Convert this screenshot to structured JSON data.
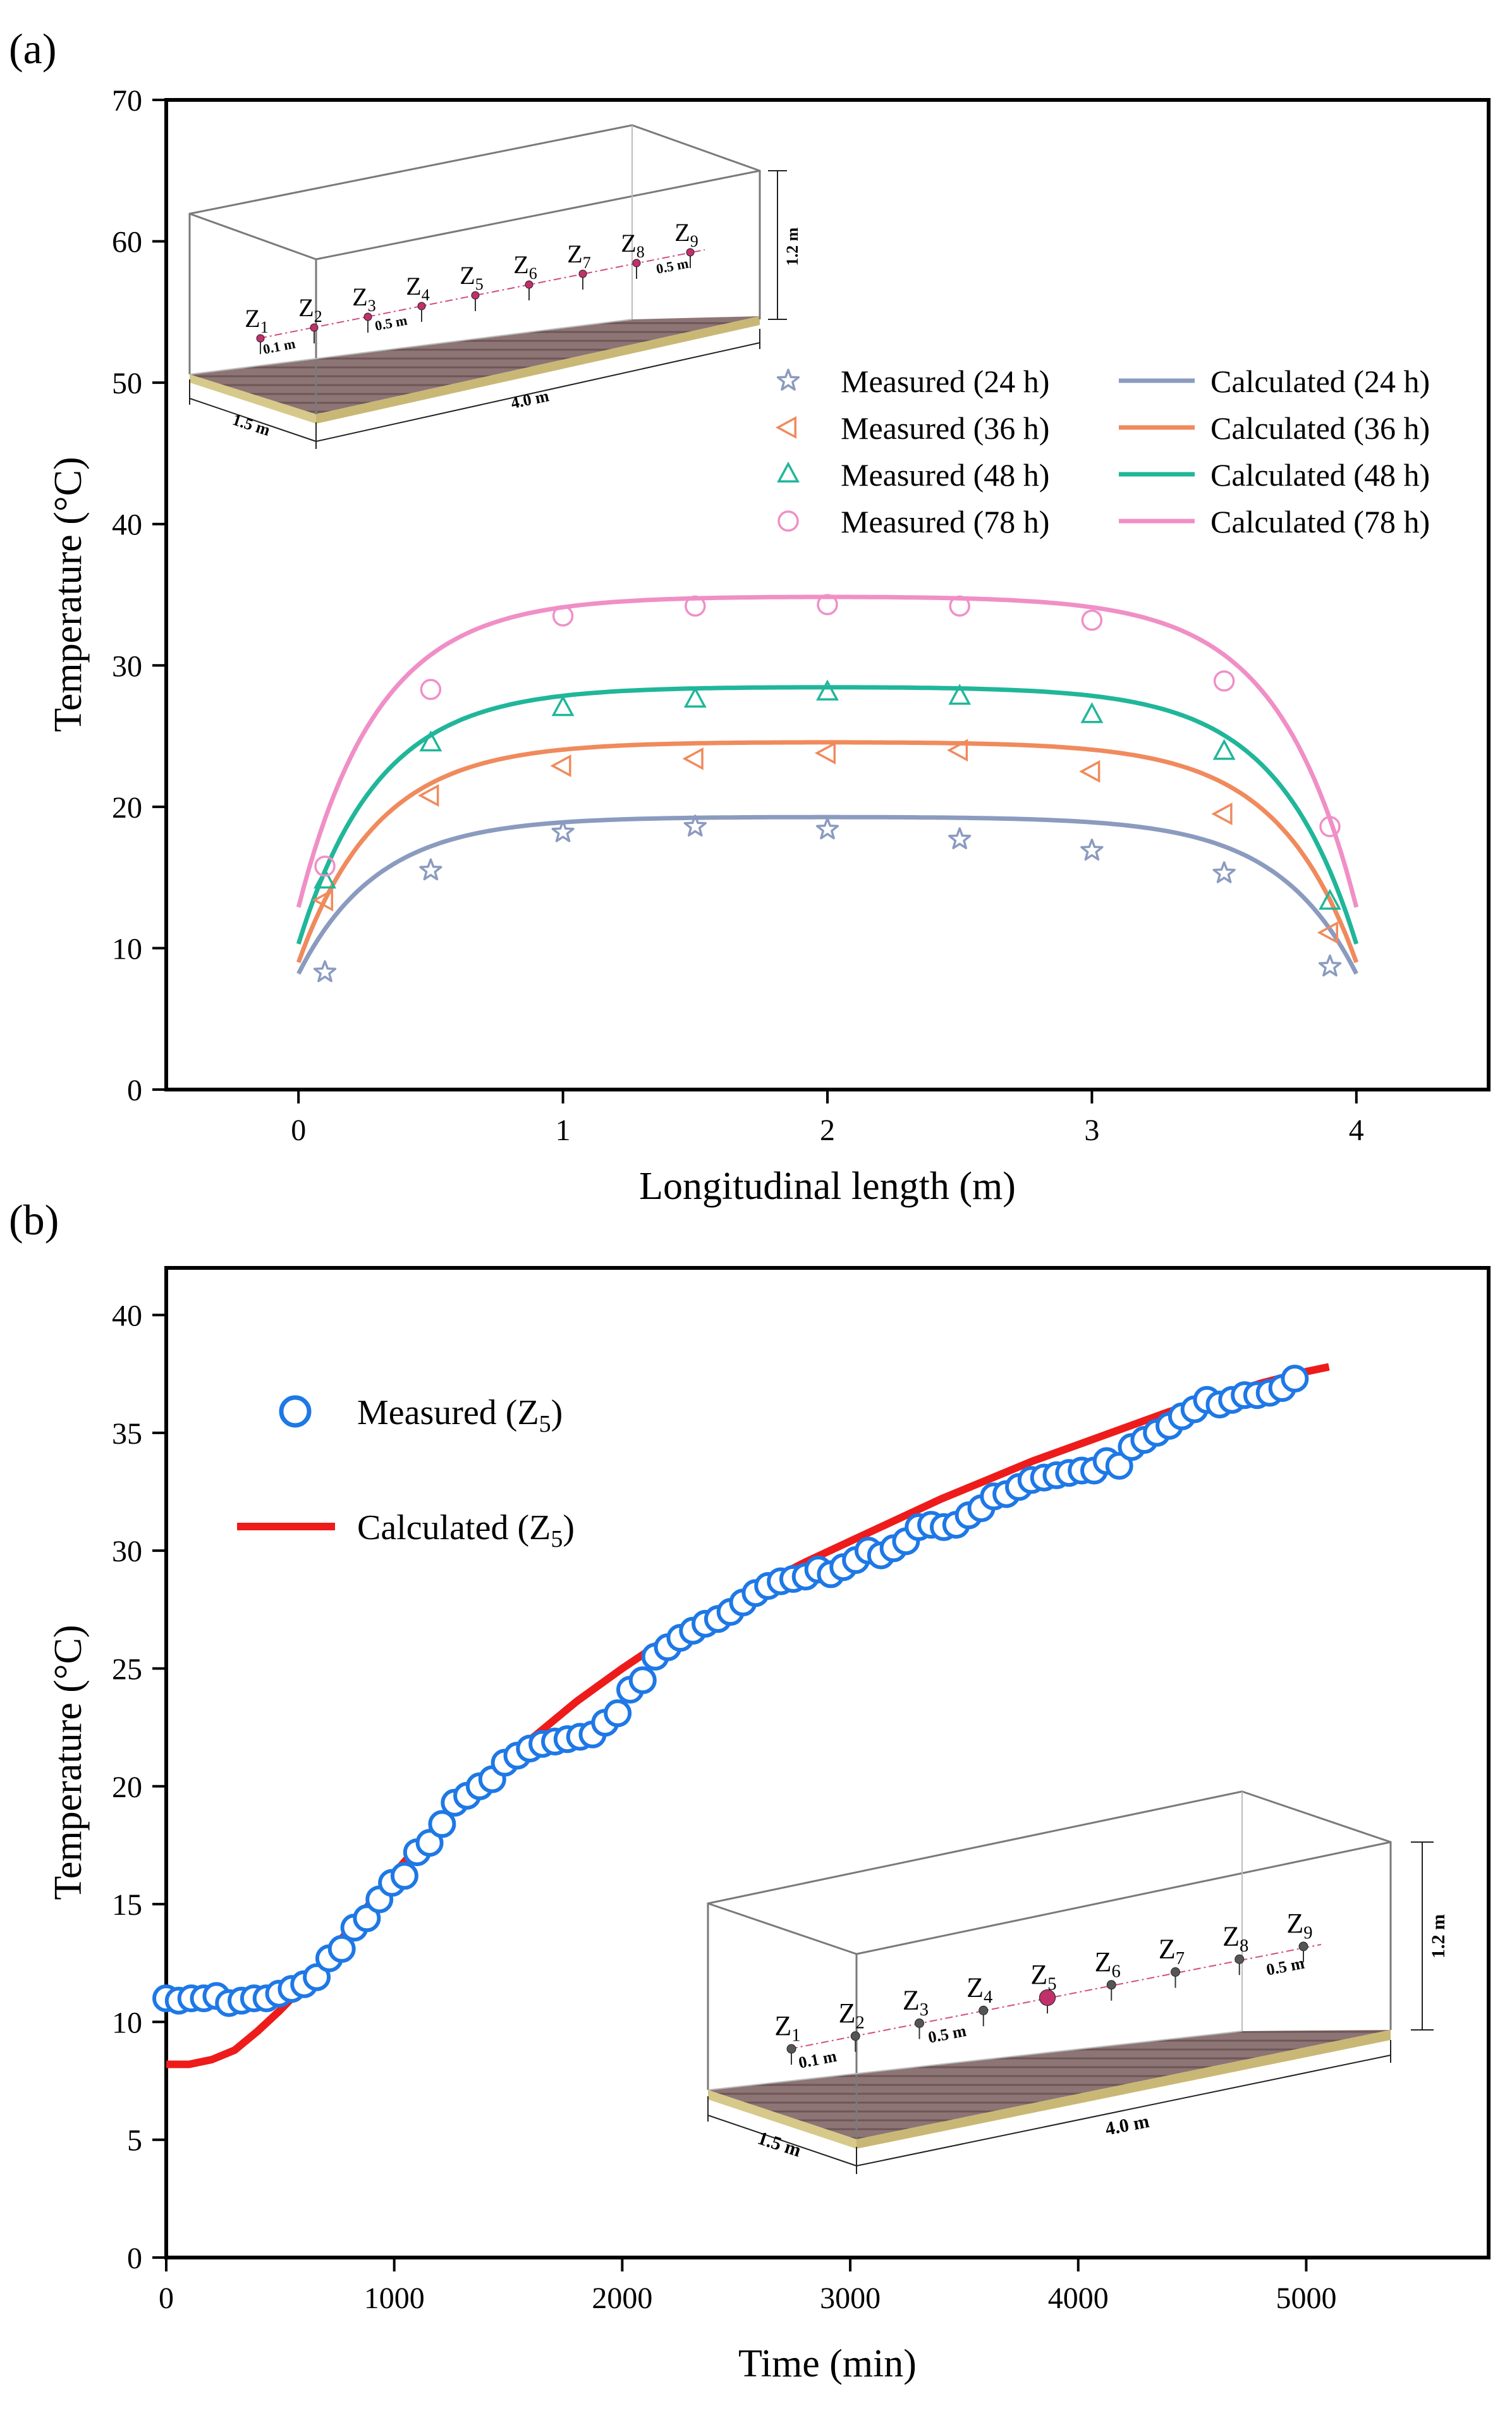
{
  "chart_data": [
    {
      "panel_label": "(a)",
      "type": "scatter+line",
      "xlabel": "Longitudinal length (m)",
      "ylabel": "Temperature (°C)",
      "xlim": [
        -0.5,
        4.5
      ],
      "ylim": [
        0,
        70
      ],
      "xticks": [
        "0",
        "1",
        "2",
        "3",
        "4"
      ],
      "yticks": [
        "0",
        "10",
        "20",
        "30",
        "40",
        "50",
        "60",
        "70"
      ],
      "measured_x": [
        0.1,
        0.5,
        1.0,
        1.5,
        2.0,
        2.5,
        3.0,
        3.5,
        3.9
      ],
      "measured": [
        {
          "name": "Measured (24 h)",
          "marker": "star",
          "color": "#8b9bbf",
          "values": [
            8.3,
            15.5,
            18.2,
            18.6,
            18.4,
            17.7,
            16.9,
            15.3,
            8.7
          ]
        },
        {
          "name": "Measured (36 h)",
          "marker": "triangle-left",
          "color": "#f08a5d",
          "values": [
            13.4,
            20.8,
            22.9,
            23.4,
            23.8,
            24.0,
            22.5,
            19.5,
            11.1
          ]
        },
        {
          "name": "Measured (48 h)",
          "marker": "triangle-up",
          "color": "#20b69a",
          "values": [
            14.8,
            24.5,
            27.0,
            27.6,
            28.1,
            27.8,
            26.5,
            23.9,
            13.3
          ]
        },
        {
          "name": "Measured (78 h)",
          "marker": "circle",
          "color": "#f08fc6",
          "values": [
            15.8,
            28.3,
            33.5,
            34.2,
            34.3,
            34.2,
            33.2,
            28.9,
            18.6
          ]
        }
      ],
      "calculated": [
        {
          "name": "Calculated (24 h)",
          "color": "#8b9bbf",
          "start": 8.2,
          "plateau": 19.3
        },
        {
          "name": "Calculated (36 h)",
          "color": "#f08a5d",
          "start": 9.0,
          "plateau": 24.6
        },
        {
          "name": "Calculated (48 h)",
          "color": "#20b69a",
          "start": 10.3,
          "plateau": 28.5
        },
        {
          "name": "Calculated (78 h)",
          "color": "#f08fc6",
          "start": 12.9,
          "plateau": 34.9
        }
      ],
      "inset": {
        "sensor_labels": [
          "Z1",
          "Z2",
          "Z3",
          "Z4",
          "Z5",
          "Z6",
          "Z7",
          "Z8",
          "Z9"
        ],
        "dim_height": "1.2 m",
        "dim_length": "4.0 m",
        "dim_width": "1.5 m",
        "dim_gap_small": "0.1 m",
        "dim_gap_mid": "0.5 m",
        "dim_gap_end": "0.5 m",
        "sensor_color": "#c0306a"
      }
    },
    {
      "panel_label": "(b)",
      "type": "scatter+line",
      "xlabel": "Time (min)",
      "ylabel": "Temperature (°C)",
      "xlim": [
        0,
        5800
      ],
      "ylim": [
        0,
        42
      ],
      "xticks": [
        "0",
        "1000",
        "2000",
        "3000",
        "4000",
        "5000"
      ],
      "yticks": [
        "0",
        "5",
        "10",
        "15",
        "20",
        "25",
        "30",
        "35",
        "40"
      ],
      "series": [
        {
          "name": "Measured  (Z5)",
          "marker": "circle",
          "color": "#1e78e6",
          "x_start": 0,
          "x_step": 55,
          "values": [
            11.0,
            10.9,
            11.0,
            11.0,
            11.1,
            10.8,
            10.9,
            11.0,
            11.0,
            11.2,
            11.4,
            11.6,
            11.9,
            12.7,
            13.1,
            14.0,
            14.4,
            15.2,
            15.9,
            16.2,
            17.2,
            17.6,
            18.4,
            19.3,
            19.6,
            20.0,
            20.3,
            21.0,
            21.3,
            21.6,
            21.8,
            21.9,
            22.0,
            22.1,
            22.2,
            22.7,
            23.1,
            24.1,
            24.5,
            25.5,
            25.9,
            26.3,
            26.6,
            26.9,
            27.1,
            27.4,
            27.8,
            28.2,
            28.5,
            28.7,
            28.8,
            28.9,
            29.2,
            29.0,
            29.3,
            29.6,
            30.0,
            29.8,
            30.1,
            30.4,
            31.0,
            31.1,
            31.0,
            31.1,
            31.5,
            31.8,
            32.3,
            32.4,
            32.7,
            33.0,
            33.1,
            33.2,
            33.3,
            33.4,
            33.4,
            33.8,
            33.6,
            34.4,
            34.7,
            35.0,
            35.3,
            35.7,
            36.0,
            36.4,
            36.2,
            36.4,
            36.6,
            36.6,
            36.7,
            36.9,
            37.3
          ]
        },
        {
          "name": "Calculated (Z5)",
          "color": "#ee1b1b",
          "x": [
            0,
            100,
            200,
            300,
            400,
            500,
            600,
            700,
            800,
            900,
            1000,
            1100,
            1200,
            1300,
            1400,
            1500,
            1600,
            1700,
            1800,
            1900,
            2000,
            2200,
            2400,
            2600,
            2800,
            3000,
            3200,
            3400,
            3600,
            3800,
            4000,
            4200,
            4400,
            4600,
            4800,
            5000,
            5100
          ],
          "values": [
            8.2,
            8.2,
            8.4,
            8.8,
            9.6,
            10.5,
            11.5,
            12.7,
            13.9,
            15.1,
            16.3,
            17.4,
            18.5,
            19.4,
            20.3,
            21.2,
            22.0,
            22.8,
            23.6,
            24.3,
            25.0,
            26.3,
            27.4,
            28.5,
            29.5,
            30.4,
            31.3,
            32.2,
            33.0,
            33.8,
            34.5,
            35.2,
            35.9,
            36.5,
            37.1,
            37.6,
            37.8
          ]
        }
      ],
      "inset": {
        "sensor_labels": [
          "Z1",
          "Z2",
          "Z3",
          "Z4",
          "Z5",
          "Z6",
          "Z7",
          "Z8",
          "Z9"
        ],
        "dim_height": "1.2 m",
        "dim_length": "4.0 m",
        "dim_width": "1.5 m",
        "dim_gap_small": "0.1 m",
        "dim_gap_mid": "0.5 m",
        "dim_gap_end": "0.5 m",
        "sensor_color": "#555555",
        "highlight_color": "#c0306a",
        "highlight_index": 4
      }
    }
  ]
}
